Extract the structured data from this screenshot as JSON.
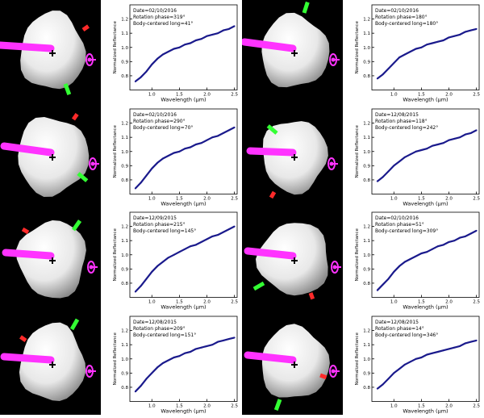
{
  "colors": {
    "background_model": "#000000",
    "asteroid": "#e8e8e8",
    "spin_axis": "#ff33ff",
    "red_marker": "#ff2a2a",
    "green_marker": "#33ff33",
    "spectrum": "#1a1a8c"
  },
  "icons": {
    "center": "plus-icon"
  },
  "axis": {
    "xlabel": "Wavelength (µm)",
    "ylabel": "Normalized Reflectance",
    "xticks": [
      "1.0",
      "1.5",
      "2.0",
      "2.5"
    ],
    "yticks": [
      "0.8",
      "0.9",
      "1.0",
      "1.1",
      "1.2"
    ]
  },
  "chart_data": [
    {
      "type": "line",
      "xlim": [
        0.6,
        2.55
      ],
      "ylim": [
        0.7,
        1.3
      ],
      "grid": false,
      "annotations": [
        "Date=02/10/2016",
        "Rotation phase=319°",
        "Body-centered long=41°"
      ],
      "x": [
        0.7,
        0.8,
        0.9,
        1.0,
        1.1,
        1.2,
        1.3,
        1.4,
        1.5,
        1.6,
        1.7,
        1.8,
        1.9,
        2.0,
        2.1,
        2.2,
        2.3,
        2.4,
        2.5
      ],
      "y": [
        0.76,
        0.79,
        0.83,
        0.88,
        0.92,
        0.95,
        0.97,
        0.99,
        1.0,
        1.02,
        1.03,
        1.05,
        1.06,
        1.08,
        1.09,
        1.1,
        1.12,
        1.13,
        1.15
      ]
    },
    {
      "type": "line",
      "xlim": [
        0.6,
        2.55
      ],
      "ylim": [
        0.7,
        1.3
      ],
      "grid": false,
      "annotations": [
        "Date=02/10/2016",
        "Rotation phase=180°",
        "Body-centered long=180°"
      ],
      "x": [
        0.7,
        0.8,
        0.9,
        1.0,
        1.1,
        1.2,
        1.3,
        1.4,
        1.5,
        1.6,
        1.7,
        1.8,
        1.9,
        2.0,
        2.1,
        2.2,
        2.3,
        2.4,
        2.5
      ],
      "y": [
        0.78,
        0.81,
        0.85,
        0.89,
        0.93,
        0.95,
        0.97,
        0.99,
        1.0,
        1.02,
        1.03,
        1.04,
        1.05,
        1.07,
        1.08,
        1.09,
        1.11,
        1.12,
        1.13
      ]
    },
    {
      "type": "line",
      "xlim": [
        0.6,
        2.55
      ],
      "ylim": [
        0.7,
        1.3
      ],
      "grid": false,
      "annotations": [
        "Date=02/10/2016",
        "Rotation phase=290°",
        "Body-centered long=70°"
      ],
      "x": [
        0.7,
        0.8,
        0.9,
        1.0,
        1.1,
        1.2,
        1.3,
        1.4,
        1.5,
        1.6,
        1.7,
        1.8,
        1.9,
        2.0,
        2.1,
        2.2,
        2.3,
        2.4,
        2.5
      ],
      "y": [
        0.74,
        0.78,
        0.83,
        0.88,
        0.92,
        0.95,
        0.97,
        0.99,
        1.0,
        1.02,
        1.03,
        1.05,
        1.06,
        1.08,
        1.1,
        1.11,
        1.13,
        1.15,
        1.17
      ]
    },
    {
      "type": "line",
      "xlim": [
        0.6,
        2.55
      ],
      "ylim": [
        0.7,
        1.3
      ],
      "grid": false,
      "annotations": [
        "Date=12/08/2015",
        "Rotation phase=118°",
        "Body-centered long=242°"
      ],
      "x": [
        0.7,
        0.8,
        0.9,
        1.0,
        1.1,
        1.2,
        1.3,
        1.4,
        1.5,
        1.6,
        1.7,
        1.8,
        1.9,
        2.0,
        2.1,
        2.2,
        2.3,
        2.4,
        2.5
      ],
      "y": [
        0.79,
        0.82,
        0.86,
        0.9,
        0.93,
        0.96,
        0.98,
        1.0,
        1.01,
        1.02,
        1.04,
        1.05,
        1.06,
        1.08,
        1.09,
        1.1,
        1.12,
        1.13,
        1.15
      ]
    },
    {
      "type": "line",
      "xlim": [
        0.6,
        2.55
      ],
      "ylim": [
        0.7,
        1.3
      ],
      "grid": false,
      "annotations": [
        "Date=12/09/2015",
        "Rotation phase=215°",
        "Body-centered long=145°"
      ],
      "x": [
        0.7,
        0.8,
        0.9,
        1.0,
        1.1,
        1.2,
        1.3,
        1.4,
        1.5,
        1.6,
        1.7,
        1.8,
        1.9,
        2.0,
        2.1,
        2.2,
        2.3,
        2.4,
        2.5
      ],
      "y": [
        0.74,
        0.78,
        0.83,
        0.88,
        0.92,
        0.95,
        0.98,
        1.0,
        1.02,
        1.04,
        1.06,
        1.07,
        1.09,
        1.11,
        1.13,
        1.14,
        1.16,
        1.18,
        1.2
      ]
    },
    {
      "type": "line",
      "xlim": [
        0.6,
        2.55
      ],
      "ylim": [
        0.7,
        1.3
      ],
      "grid": false,
      "annotations": [
        "Date=02/10/2016",
        "Rotation phase=51°",
        "Body-centered long=309°"
      ],
      "x": [
        0.7,
        0.8,
        0.9,
        1.0,
        1.1,
        1.2,
        1.3,
        1.4,
        1.5,
        1.6,
        1.7,
        1.8,
        1.9,
        2.0,
        2.1,
        2.2,
        2.3,
        2.4,
        2.5
      ],
      "y": [
        0.75,
        0.79,
        0.83,
        0.88,
        0.92,
        0.95,
        0.97,
        0.99,
        1.01,
        1.02,
        1.04,
        1.06,
        1.07,
        1.09,
        1.1,
        1.12,
        1.13,
        1.15,
        1.17
      ]
    },
    {
      "type": "line",
      "xlim": [
        0.6,
        2.55
      ],
      "ylim": [
        0.7,
        1.3
      ],
      "grid": false,
      "annotations": [
        "Date=12/08/2015",
        "Rotation phase=209°",
        "Body-centered long=151°"
      ],
      "x": [
        0.7,
        0.8,
        0.9,
        1.0,
        1.1,
        1.2,
        1.3,
        1.4,
        1.5,
        1.6,
        1.7,
        1.8,
        1.9,
        2.0,
        2.1,
        2.2,
        2.3,
        2.4,
        2.5
      ],
      "y": [
        0.77,
        0.81,
        0.86,
        0.9,
        0.94,
        0.97,
        0.99,
        1.01,
        1.02,
        1.04,
        1.05,
        1.07,
        1.08,
        1.09,
        1.1,
        1.12,
        1.13,
        1.14,
        1.15
      ]
    },
    {
      "type": "line",
      "xlim": [
        0.6,
        2.55
      ],
      "ylim": [
        0.7,
        1.3
      ],
      "grid": false,
      "annotations": [
        "Date=12/08/2015",
        "Rotation phase=14°",
        "Body-centered long=346°"
      ],
      "x": [
        0.7,
        0.8,
        0.9,
        1.0,
        1.1,
        1.2,
        1.3,
        1.4,
        1.5,
        1.6,
        1.7,
        1.8,
        1.9,
        2.0,
        2.1,
        2.2,
        2.3,
        2.4,
        2.5
      ],
      "y": [
        0.79,
        0.82,
        0.86,
        0.9,
        0.93,
        0.96,
        0.98,
        1.0,
        1.01,
        1.03,
        1.04,
        1.05,
        1.06,
        1.07,
        1.08,
        1.09,
        1.11,
        1.12,
        1.13
      ]
    }
  ]
}
